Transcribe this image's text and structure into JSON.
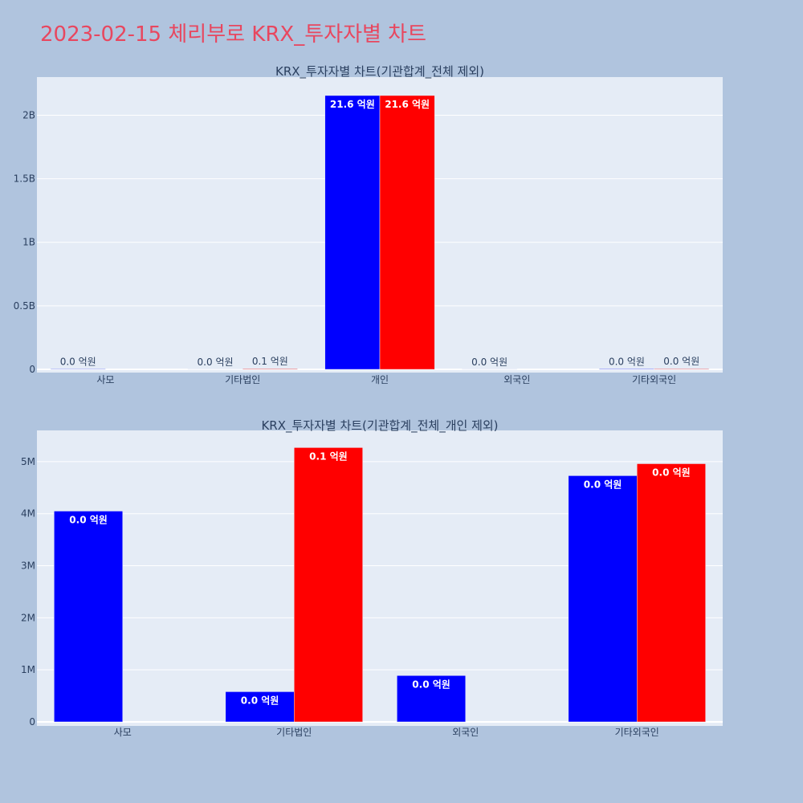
{
  "title": "2023-02-15 체리부로 KRX_투자자별 차트",
  "colors": {
    "buy": "#0000ff",
    "sell": "#ff0000",
    "plot_bg": "#e5ecf6",
    "page_bg": "#b0c4de"
  },
  "chart_data": [
    {
      "type": "bar",
      "title": "KRX_투자자별 차트(기관합계_전체 제외)",
      "categories": [
        "사모",
        "기타법인",
        "개인",
        "외국인",
        "기타외국인"
      ],
      "ylim": [
        0,
        2300000000
      ],
      "yticks": [
        {
          "value": 0,
          "label": "0"
        },
        {
          "value": 500000000,
          "label": "0.5B"
        },
        {
          "value": 1000000000,
          "label": "1B"
        },
        {
          "value": 1500000000,
          "label": "1.5B"
        },
        {
          "value": 2000000000,
          "label": "2B"
        }
      ],
      "grid": true,
      "series": [
        {
          "color": "#0000ff",
          "values": [
            4050000,
            580000,
            2155000000,
            890000,
            4730000
          ],
          "labels": [
            "0.0 억원",
            "0.0 억원",
            "21.6 억원",
            "0.0 억원",
            "0.0 억원"
          ]
        },
        {
          "color": "#ff0000",
          "values": [
            0,
            5270000,
            2155000000,
            0,
            4960000
          ],
          "labels": [
            "",
            "0.1 억원",
            "21.6 억원",
            "",
            "0.0 억원"
          ]
        }
      ]
    },
    {
      "type": "bar",
      "title": "KRX_투자자별 차트(기관합계_전체_개인 제외)",
      "categories": [
        "사모",
        "기타법인",
        "외국인",
        "기타외국인"
      ],
      "ylim": [
        0,
        5600000
      ],
      "yticks": [
        {
          "value": 0,
          "label": "0"
        },
        {
          "value": 1000000,
          "label": "1M"
        },
        {
          "value": 2000000,
          "label": "2M"
        },
        {
          "value": 3000000,
          "label": "3M"
        },
        {
          "value": 4000000,
          "label": "4M"
        },
        {
          "value": 5000000,
          "label": "5M"
        }
      ],
      "grid": true,
      "series": [
        {
          "color": "#0000ff",
          "values": [
            4050000,
            580000,
            890000,
            4730000
          ],
          "labels": [
            "0.0 억원",
            "0.0 억원",
            "0.0 억원",
            "0.0 억원"
          ]
        },
        {
          "color": "#ff0000",
          "values": [
            0,
            5270000,
            0,
            4960000
          ],
          "labels": [
            "",
            "0.1 억원",
            "",
            "0.0 억원"
          ]
        }
      ]
    }
  ]
}
